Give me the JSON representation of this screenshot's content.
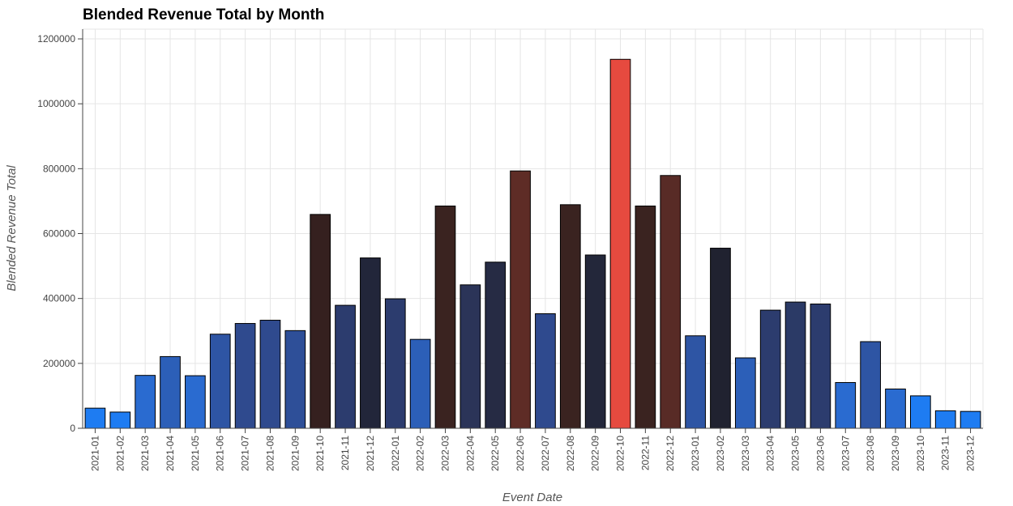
{
  "chart_data": {
    "type": "bar",
    "title": "Blended Revenue Total by Month",
    "xlabel": "Event Date",
    "ylabel": "Blended Revenue Total",
    "ylim": [
      0,
      1230000
    ],
    "yticks": [
      0,
      200000,
      400000,
      600000,
      800000,
      1000000,
      1200000
    ],
    "ytick_labels": [
      "0",
      "200000",
      "400000",
      "600000",
      "800000",
      "1000000",
      "1200000"
    ],
    "grid": true,
    "categories": [
      "2021-01",
      "2021-02",
      "2021-03",
      "2021-04",
      "2021-05",
      "2021-06",
      "2021-07",
      "2021-08",
      "2021-09",
      "2021-10",
      "2021-11",
      "2021-12",
      "2022-01",
      "2022-02",
      "2022-03",
      "2022-04",
      "2022-05",
      "2022-06",
      "2022-07",
      "2022-08",
      "2022-09",
      "2022-10",
      "2022-11",
      "2022-12",
      "2023-01",
      "2023-02",
      "2023-03",
      "2023-04",
      "2023-05",
      "2023-06",
      "2023-07",
      "2023-08",
      "2023-09",
      "2023-10",
      "2023-11",
      "2023-12"
    ],
    "values": [
      62000,
      50000,
      163000,
      221000,
      162000,
      290000,
      323000,
      333000,
      301000,
      659000,
      379000,
      525000,
      399000,
      274000,
      685000,
      442000,
      512000,
      793000,
      353000,
      689000,
      534000,
      1137000,
      685000,
      779000,
      285000,
      555000,
      217000,
      364000,
      389000,
      383000,
      141000,
      267000,
      121000,
      100000,
      54000,
      52000
    ],
    "colors": [
      "#1e7cf2",
      "#1e7cf2",
      "#2a6bd0",
      "#2c5fb8",
      "#2a6bd0",
      "#2e55a4",
      "#2f4a8e",
      "#2f4a8e",
      "#2e4f98",
      "#35201f",
      "#2c3c6e",
      "#22263a",
      "#2c3c6e",
      "#2c5fb8",
      "#3a2320",
      "#2b3458",
      "#262b44",
      "#5e2c26",
      "#2f4a8e",
      "#3a2320",
      "#23273a",
      "#e64a3f",
      "#3a2320",
      "#582b26",
      "#2e55a4",
      "#202230",
      "#2c5fb8",
      "#2c3c6e",
      "#2b3a66",
      "#2c3c6e",
      "#2a6bd0",
      "#2e55a4",
      "#2a6bd0",
      "#1e7cf2",
      "#1e7cf2",
      "#1e7cf2"
    ]
  }
}
